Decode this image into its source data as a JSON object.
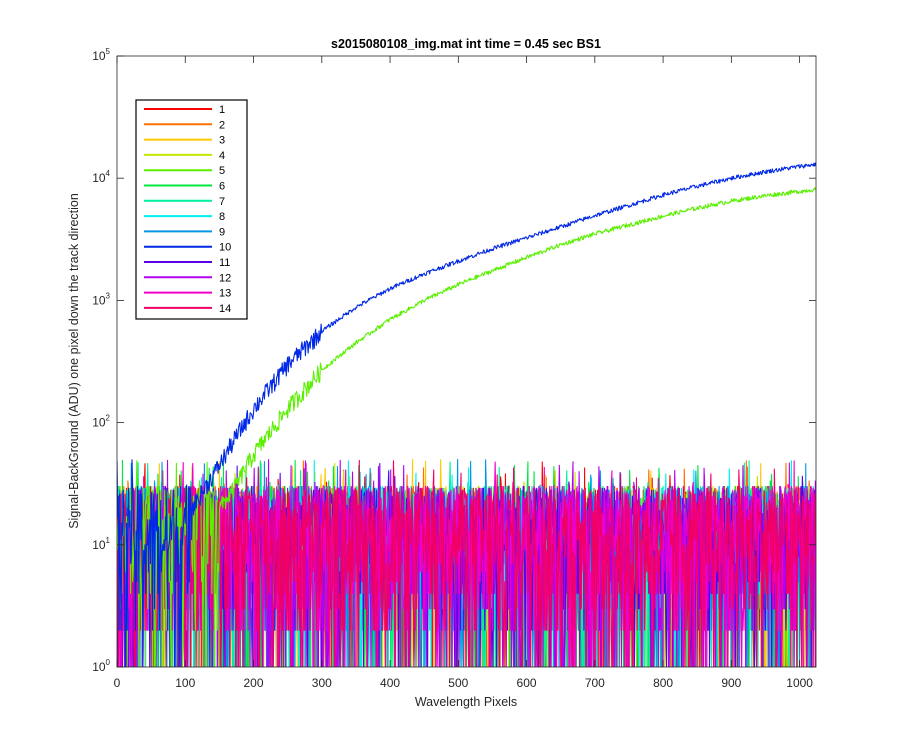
{
  "chart_data": {
    "type": "line",
    "title": "s2015080108_img.mat int time = 0.45 sec   BS1",
    "xlabel": "Wavelength Pixels",
    "ylabel": "Signal-BackGround (ADU) one pixel down the track direction",
    "xlim": [
      0,
      1024
    ],
    "ylim": [
      1,
      100000
    ],
    "yscale": "log",
    "grid": false,
    "legend_placement": "top-left",
    "xticks": [
      "0",
      "100",
      "200",
      "300",
      "400",
      "500",
      "600",
      "700",
      "800",
      "900",
      "1000"
    ],
    "yticks": [
      {
        "value": 1,
        "exp": "0"
      },
      {
        "value": 10,
        "exp": "1"
      },
      {
        "value": 100,
        "exp": "2"
      },
      {
        "value": 1000,
        "exp": "3"
      },
      {
        "value": 10000,
        "exp": "4"
      },
      {
        "value": 100000,
        "exp": "5"
      }
    ],
    "noise_floor": {
      "min": 1,
      "typical_max": 30,
      "peak_max": 50
    },
    "series": [
      {
        "name": "1",
        "color": "#ff0000",
        "kind": "noise"
      },
      {
        "name": "2",
        "color": "#ff7000",
        "kind": "noise"
      },
      {
        "name": "3",
        "color": "#ffc800",
        "kind": "noise"
      },
      {
        "name": "4",
        "color": "#c8e600",
        "kind": "noise"
      },
      {
        "name": "5",
        "color": "#5af000",
        "kind": "signal",
        "x": [
          150,
          170,
          200,
          250,
          300,
          350,
          400,
          450,
          500,
          550,
          600,
          650,
          700,
          750,
          800,
          850,
          900,
          950,
          1000,
          1024
        ],
        "values": [
          20,
          28,
          55,
          130,
          270,
          450,
          700,
          1000,
          1350,
          1750,
          2250,
          2850,
          3500,
          4150,
          4900,
          5700,
          6500,
          7200,
          7800,
          8100
        ]
      },
      {
        "name": "6",
        "color": "#00e640",
        "kind": "noise"
      },
      {
        "name": "7",
        "color": "#00f0a0",
        "kind": "noise"
      },
      {
        "name": "8",
        "color": "#00f0f0",
        "kind": "noise"
      },
      {
        "name": "9",
        "color": "#0096e6",
        "kind": "noise"
      },
      {
        "name": "10",
        "color": "#0028e6",
        "kind": "signal",
        "x": [
          110,
          130,
          150,
          170,
          200,
          250,
          300,
          350,
          400,
          450,
          500,
          550,
          600,
          650,
          700,
          750,
          800,
          850,
          900,
          950,
          1000,
          1024
        ],
        "values": [
          20,
          30,
          45,
          70,
          130,
          300,
          560,
          880,
          1250,
          1650,
          2100,
          2650,
          3250,
          4000,
          4950,
          6000,
          7300,
          8600,
          10000,
          11300,
          12500,
          13000
        ]
      },
      {
        "name": "11",
        "color": "#5a00e6",
        "kind": "noise"
      },
      {
        "name": "12",
        "color": "#b400f0",
        "kind": "noise"
      },
      {
        "name": "13",
        "color": "#f000c8",
        "kind": "noise"
      },
      {
        "name": "14",
        "color": "#f00064",
        "kind": "noise"
      }
    ]
  }
}
